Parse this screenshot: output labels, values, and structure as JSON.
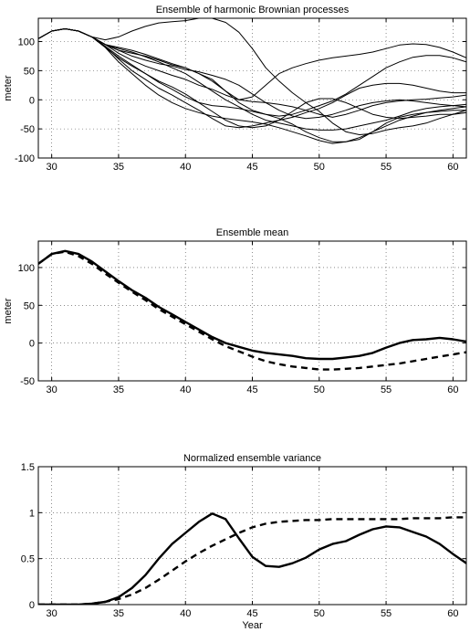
{
  "chart_data": [
    {
      "type": "line",
      "title": "Ensemble of harmonic Brownian processes",
      "xlabel": "",
      "ylabel": "meter",
      "xlim": [
        29,
        61
      ],
      "ylim": [
        -100,
        140
      ],
      "xticks": [
        30,
        35,
        40,
        45,
        50,
        55,
        60
      ],
      "yticks": [
        100,
        50,
        0,
        -50,
        -100
      ],
      "ytick_labels": [
        "100",
        "50",
        "0",
        "-50",
        "-100"
      ],
      "grid": true,
      "series": [
        {
          "style": "thin",
          "x": [
            29,
            30,
            31,
            32,
            33,
            34,
            35,
            36,
            37,
            38,
            39,
            40,
            41,
            42,
            43,
            44,
            45,
            46,
            47,
            48,
            49,
            50,
            51,
            52,
            53,
            54,
            55,
            56,
            57,
            58,
            59,
            60,
            61
          ],
          "y": [
            105,
            118,
            122,
            118,
            108,
            103,
            108,
            118,
            126,
            132,
            134,
            136,
            140,
            140,
            133,
            116,
            88,
            55,
            32,
            12,
            -5,
            -20,
            -40,
            -55,
            -60,
            -58,
            -52,
            -48,
            -45,
            -40,
            -32,
            -25,
            -18
          ]
        },
        {
          "style": "thin",
          "x": [
            29,
            30,
            31,
            32,
            33,
            34,
            35,
            36,
            37,
            38,
            39,
            40,
            41,
            42,
            43,
            44,
            45,
            46,
            47,
            48,
            49,
            50,
            51,
            52,
            53,
            54,
            55,
            56,
            57,
            58,
            59,
            60,
            61
          ],
          "y": [
            105,
            118,
            122,
            118,
            108,
            95,
            85,
            80,
            75,
            68,
            60,
            55,
            45,
            35,
            15,
            0,
            -3,
            -5,
            -8,
            -12,
            -18,
            -25,
            -30,
            -25,
            -18,
            -10,
            -5,
            -2,
            0,
            1,
            3,
            5,
            8
          ]
        },
        {
          "style": "thin",
          "x": [
            29,
            30,
            31,
            32,
            33,
            34,
            35,
            36,
            37,
            38,
            39,
            40,
            41,
            42,
            43,
            44,
            45,
            46,
            47,
            48,
            49,
            50,
            51,
            52,
            53,
            54,
            55,
            56,
            57,
            58,
            59,
            60,
            61
          ],
          "y": [
            105,
            118,
            122,
            118,
            108,
            95,
            80,
            68,
            58,
            50,
            42,
            35,
            25,
            18,
            8,
            0,
            5,
            25,
            45,
            55,
            62,
            68,
            72,
            75,
            78,
            82,
            88,
            94,
            96,
            95,
            90,
            82,
            72
          ]
        },
        {
          "style": "thin",
          "x": [
            29,
            30,
            31,
            32,
            33,
            34,
            35,
            36,
            37,
            38,
            39,
            40,
            41,
            42,
            43,
            44,
            45,
            46,
            47,
            48,
            49,
            50,
            51,
            52,
            53,
            54,
            55,
            56,
            57,
            58,
            59,
            60,
            61
          ],
          "y": [
            105,
            118,
            122,
            118,
            108,
            95,
            90,
            85,
            78,
            70,
            62,
            55,
            45,
            32,
            15,
            -5,
            -18,
            -25,
            -28,
            -25,
            -18,
            -10,
            -2,
            10,
            25,
            40,
            55,
            65,
            73,
            76,
            76,
            72,
            65
          ]
        },
        {
          "style": "thin",
          "x": [
            29,
            30,
            31,
            32,
            33,
            34,
            35,
            36,
            37,
            38,
            39,
            40,
            41,
            42,
            43,
            44,
            45,
            46,
            47,
            48,
            49,
            50,
            51,
            52,
            53,
            54,
            55,
            56,
            57,
            58,
            59,
            60,
            61
          ],
          "y": [
            105,
            118,
            122,
            118,
            108,
            95,
            88,
            82,
            74,
            65,
            55,
            45,
            30,
            15,
            0,
            -12,
            -25,
            -35,
            -40,
            -45,
            -50,
            -52,
            -52,
            -50,
            -45,
            -40,
            -35,
            -28,
            -20,
            -15,
            -12,
            -10,
            -8
          ]
        },
        {
          "style": "thin",
          "x": [
            29,
            30,
            31,
            32,
            33,
            34,
            35,
            36,
            37,
            38,
            39,
            40,
            41,
            42,
            43,
            44,
            45,
            46,
            47,
            48,
            49,
            50,
            51,
            52,
            53,
            54,
            55,
            56,
            57,
            58,
            59,
            60,
            61
          ],
          "y": [
            105,
            118,
            122,
            118,
            108,
            92,
            75,
            60,
            45,
            30,
            18,
            5,
            -5,
            -10,
            -12,
            -15,
            -20,
            -25,
            -32,
            -42,
            -55,
            -65,
            -72,
            -72,
            -68,
            -55,
            -40,
            -30,
            -25,
            -22,
            -20,
            -18,
            -18
          ]
        },
        {
          "style": "thin",
          "x": [
            29,
            30,
            31,
            32,
            33,
            34,
            35,
            36,
            37,
            38,
            39,
            40,
            41,
            42,
            43,
            44,
            45,
            46,
            47,
            48,
            49,
            50,
            51,
            52,
            53,
            54,
            55,
            56,
            57,
            58,
            59,
            60,
            61
          ],
          "y": [
            105,
            118,
            122,
            118,
            108,
            90,
            72,
            58,
            45,
            32,
            22,
            10,
            -5,
            -20,
            -35,
            -45,
            -48,
            -45,
            -35,
            -20,
            -5,
            2,
            2,
            -5,
            -15,
            -25,
            -30,
            -32,
            -30,
            -28,
            -25,
            -25,
            -22
          ]
        },
        {
          "style": "thin",
          "x": [
            29,
            30,
            31,
            32,
            33,
            34,
            35,
            36,
            37,
            38,
            39,
            40,
            41,
            42,
            43,
            44,
            45,
            46,
            47,
            48,
            49,
            50,
            51,
            52,
            53,
            54,
            55,
            56,
            57,
            58,
            59,
            60,
            61
          ],
          "y": [
            105,
            118,
            122,
            118,
            108,
            92,
            70,
            50,
            35,
            20,
            8,
            -5,
            -18,
            -32,
            -45,
            -48,
            -45,
            -40,
            -35,
            -30,
            -22,
            -15,
            -5,
            8,
            20,
            25,
            28,
            28,
            25,
            20,
            15,
            12,
            12
          ]
        },
        {
          "style": "thin",
          "x": [
            29,
            30,
            31,
            32,
            33,
            34,
            35,
            36,
            37,
            38,
            39,
            40,
            41,
            42,
            43,
            44,
            45,
            46,
            47,
            48,
            49,
            50,
            51,
            52,
            53,
            54,
            55,
            56,
            57,
            58,
            59,
            60,
            61
          ],
          "y": [
            105,
            118,
            122,
            118,
            108,
            90,
            65,
            45,
            25,
            8,
            -5,
            -15,
            -22,
            -28,
            -32,
            -35,
            -38,
            -42,
            -48,
            -55,
            -62,
            -70,
            -75,
            -72,
            -65,
            -55,
            -45,
            -35,
            -28,
            -22,
            -18,
            -15,
            -12
          ]
        },
        {
          "style": "thin",
          "x": [
            29,
            30,
            31,
            32,
            33,
            34,
            35,
            36,
            37,
            38,
            39,
            40,
            41,
            42,
            43,
            44,
            45,
            46,
            47,
            48,
            49,
            50,
            51,
            52,
            53,
            54,
            55,
            56,
            57,
            58,
            59,
            60,
            61
          ],
          "y": [
            105,
            118,
            122,
            118,
            108,
            95,
            85,
            75,
            68,
            62,
            58,
            52,
            48,
            42,
            35,
            25,
            10,
            -5,
            -18,
            -28,
            -32,
            -30,
            -25,
            -18,
            -10,
            -5,
            -2,
            0,
            -2,
            -5,
            -8,
            -10,
            -12
          ]
        }
      ]
    },
    {
      "type": "line",
      "title": "Ensemble mean",
      "xlabel": "",
      "ylabel": "meter",
      "xlim": [
        29,
        61
      ],
      "ylim": [
        -50,
        135
      ],
      "xticks": [
        30,
        35,
        40,
        45,
        50,
        55,
        60
      ],
      "yticks": [
        100,
        50,
        0,
        -50
      ],
      "ytick_labels": [
        "100",
        "50",
        "0",
        "-50"
      ],
      "grid": true,
      "series": [
        {
          "style": "solid",
          "x": [
            29,
            30,
            31,
            32,
            33,
            34,
            35,
            36,
            37,
            38,
            39,
            40,
            41,
            42,
            43,
            44,
            45,
            46,
            47,
            48,
            49,
            50,
            51,
            52,
            53,
            54,
            55,
            56,
            57,
            58,
            59,
            60,
            61
          ],
          "y": [
            105,
            118,
            122,
            118,
            108,
            95,
            82,
            70,
            60,
            48,
            38,
            28,
            18,
            8,
            0,
            -5,
            -10,
            -13,
            -15,
            -17,
            -20,
            -21,
            -21,
            -19,
            -17,
            -13,
            -6,
            0,
            4,
            5,
            7,
            5,
            2
          ]
        },
        {
          "style": "dashed",
          "x": [
            29,
            30,
            31,
            32,
            33,
            34,
            35,
            36,
            37,
            38,
            39,
            40,
            41,
            42,
            43,
            44,
            45,
            46,
            47,
            48,
            49,
            50,
            51,
            52,
            53,
            54,
            55,
            56,
            57,
            58,
            59,
            60,
            61
          ],
          "y": [
            105,
            118,
            121,
            115,
            105,
            92,
            80,
            68,
            57,
            45,
            35,
            25,
            15,
            5,
            -4,
            -11,
            -18,
            -24,
            -28,
            -31,
            -33,
            -35,
            -35,
            -34,
            -33,
            -31,
            -29,
            -27,
            -24,
            -21,
            -18,
            -15,
            -12
          ]
        }
      ]
    },
    {
      "type": "line",
      "title": "Normalized ensemble variance",
      "xlabel": "Year",
      "ylabel": "",
      "xlim": [
        29,
        61
      ],
      "ylim": [
        0,
        1.5
      ],
      "xticks": [
        30,
        35,
        40,
        45,
        50,
        55,
        60
      ],
      "yticks": [
        1.5,
        1,
        0.5,
        0
      ],
      "ytick_labels": [
        "1.5",
        "1",
        "0.5",
        "0"
      ],
      "grid": true,
      "series": [
        {
          "style": "solid",
          "x": [
            29,
            30,
            31,
            32,
            33,
            34,
            35,
            36,
            37,
            38,
            39,
            40,
            41,
            42,
            43,
            44,
            45,
            46,
            47,
            48,
            49,
            50,
            51,
            52,
            53,
            54,
            55,
            56,
            57,
            58,
            59,
            60,
            61
          ],
          "y": [
            0,
            0,
            0,
            0,
            0.01,
            0.03,
            0.08,
            0.18,
            0.32,
            0.5,
            0.66,
            0.78,
            0.9,
            0.99,
            0.93,
            0.72,
            0.52,
            0.42,
            0.41,
            0.45,
            0.51,
            0.6,
            0.66,
            0.69,
            0.76,
            0.82,
            0.85,
            0.84,
            0.79,
            0.74,
            0.66,
            0.55,
            0.45
          ]
        },
        {
          "style": "dashed",
          "x": [
            29,
            30,
            31,
            32,
            33,
            34,
            35,
            36,
            37,
            38,
            39,
            40,
            41,
            42,
            43,
            44,
            45,
            46,
            47,
            48,
            49,
            50,
            51,
            52,
            53,
            54,
            55,
            56,
            57,
            58,
            59,
            60,
            61
          ],
          "y": [
            0,
            0,
            0,
            0,
            0.01,
            0.03,
            0.06,
            0.11,
            0.18,
            0.27,
            0.37,
            0.47,
            0.56,
            0.64,
            0.71,
            0.78,
            0.84,
            0.88,
            0.9,
            0.91,
            0.92,
            0.92,
            0.93,
            0.93,
            0.93,
            0.93,
            0.93,
            0.93,
            0.94,
            0.94,
            0.94,
            0.95,
            0.95
          ]
        }
      ]
    }
  ]
}
